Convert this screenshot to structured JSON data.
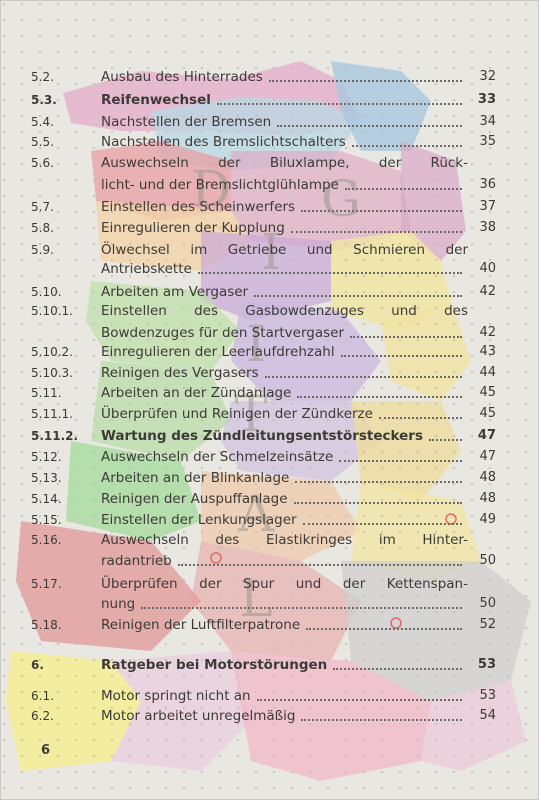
{
  "watermark": "DIGITAL",
  "page_number": "6",
  "entries": [
    {
      "num": "5.2.",
      "title": "Ausbau des Hinterrades",
      "page": "32"
    },
    {
      "num": "5.3.",
      "title": "Reifenwechsel",
      "page": "33",
      "bold": true
    },
    {
      "num": "5.4.",
      "title": "Nachstellen der Bremsen",
      "page": "34"
    },
    {
      "num": "5.5.",
      "title": "Nachstellen des Bremslichtschalters",
      "page": "35"
    },
    {
      "num": "5.6.",
      "title": "Auswechseln der Biluxlampe, der Rück-",
      "cont": "licht- und der Bremslichtglühlampe",
      "page": "36"
    },
    {
      "num": "5.7.",
      "title": "Einstellen des Scheinwerfers",
      "page": "37"
    },
    {
      "num": "5.8.",
      "title": "Einregulieren der Kupplung",
      "page": "38"
    },
    {
      "num": "5.9.",
      "title": "Ölwechsel im Getriebe und Schmieren der",
      "cont": "Antriebskette",
      "page": "40"
    },
    {
      "num": "5.10.",
      "title": "Arbeiten am Vergaser",
      "page": "42"
    },
    {
      "num": "5.10.1.",
      "title": "Einstellen des Gasbowdenzuges und des",
      "cont": "Bowdenzuges für den Startvergaser",
      "page": "42"
    },
    {
      "num": "5.10.2.",
      "title": "Einregulieren der Leerlaufdrehzahl",
      "page": "43"
    },
    {
      "num": "5.10.3.",
      "title": "Reinigen des Vergasers",
      "page": "44"
    },
    {
      "num": "5.11.",
      "title": "Arbeiten an der Zündanlage",
      "page": "45"
    },
    {
      "num": "5.11.1.",
      "title": "Überprüfen und Reinigen der Zündkerze",
      "page": "45"
    },
    {
      "num": "5.11.2.",
      "title": "Wartung des Zündleitungsentstörsteckers",
      "page": "47",
      "bold": true
    },
    {
      "num": "5.12.",
      "title": "Auswechseln der Schmelzeinsätze",
      "page": "47"
    },
    {
      "num": "5.13.",
      "title": "Arbeiten an der Blinkanlage",
      "page": "48"
    },
    {
      "num": "5.14.",
      "title": "Reinigen der Auspuffanlage",
      "page": "48"
    },
    {
      "num": "5.15.",
      "title": "Einstellen der Lenkungslager",
      "page": "49"
    },
    {
      "num": "5.16.",
      "title": "Auswechseln des Elastikringes im Hinter-",
      "cont": "radantrieb",
      "page": "50"
    },
    {
      "num": "5.17.",
      "title": "Überprüfen der Spur und der Kettenspan-",
      "cont": "nung",
      "page": "50"
    },
    {
      "num": "5.18.",
      "title": "Reinigen der Luftfilterpatrone",
      "page": "52"
    },
    {
      "num": "6.",
      "title": "Ratgeber bei Motorstörungen",
      "page": "53",
      "bold": true
    },
    {
      "num": "6.1.",
      "title": "Motor springt nicht an",
      "page": "53"
    },
    {
      "num": "6.2.",
      "title": "Motor arbeitet unregelmäßig",
      "page": "54"
    }
  ]
}
